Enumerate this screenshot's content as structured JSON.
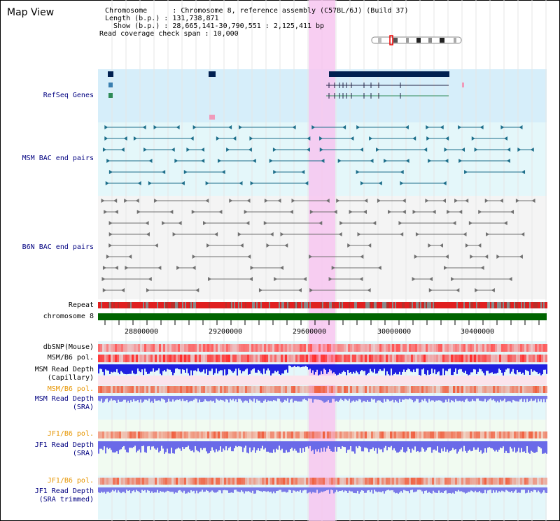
{
  "title": "Map View",
  "info": {
    "chromosome_label": "Chromosome      : Chromosome 8, reference assembly (C57BL/6J) (Build 37)",
    "length_label": "Length (b.p.) : 131,738,871",
    "show_label": "  Show (b.p.) : 28,665,141-30,790,551 : 2,125,411 bp",
    "coverage_label": "Read coverage check span : 10,000"
  },
  "tracks": {
    "refseq": "RefSeq Genes",
    "msm_bac": "MSM BAC end pairs",
    "b6n_bac": "B6N BAC end pairs",
    "repeat": "Repeat",
    "chromosome": "chromosome 8",
    "dbsnp": "dbSNP(Mouse)",
    "msm_b6_pol_1": "MSM/B6 pol.",
    "msm_depth_cap_1": "MSM Read Depth",
    "msm_depth_cap_2": "(Capillary)",
    "msm_b6_pol_2": "MSM/B6 pol.",
    "msm_depth_sra_1": "MSM Read Depth",
    "msm_depth_sra_2": "(SRA)",
    "jf1_b6_pol_1": "JF1/B6 pol.",
    "jf1_depth_sra_1": "JF1 Read Depth",
    "jf1_depth_sra_2": "(SRA)",
    "jf1_b6_pol_2": "JF1/B6 pol.",
    "jf1_depth_trim_1": "JF1 Read Depth",
    "jf1_depth_trim_2": "(SRA trimmed)"
  },
  "axis": {
    "ticks": [
      "28800000",
      "29200000",
      "29600000",
      "30000000",
      "30400000"
    ]
  },
  "colors": {
    "refseq_bg": "#d6eefa",
    "msm_bg": "#e4f7fa",
    "b6n_bg": "#f4f4f4",
    "highlight": "#f7c6f0",
    "chromosome": "#006400",
    "navy": "#000080",
    "orange": "#e69500"
  }
}
